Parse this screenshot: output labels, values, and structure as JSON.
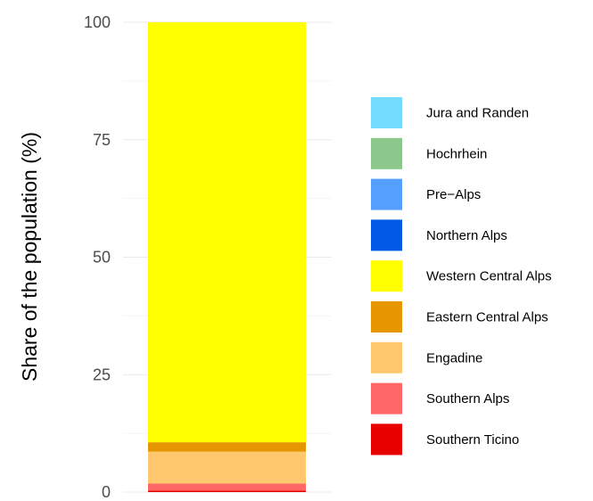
{
  "chart_data": {
    "type": "bar",
    "stacked": true,
    "title": "",
    "xlabel": "",
    "ylabel": "Share of the population (%)",
    "ylim": [
      0,
      100
    ],
    "yticks": [
      0,
      25,
      50,
      75,
      100
    ],
    "grid": true,
    "legend_position": "right",
    "categories": [
      ""
    ],
    "series": [
      {
        "name": "Southern Ticino",
        "values": [
          0.3
        ],
        "color": "#e60000"
      },
      {
        "name": "Southern Alps",
        "values": [
          1.5
        ],
        "color": "#ff6666"
      },
      {
        "name": "Engadine",
        "values": [
          6.8
        ],
        "color": "#ffc86e"
      },
      {
        "name": "Eastern Central Alps",
        "values": [
          2.0
        ],
        "color": "#e69600"
      },
      {
        "name": "Western Central Alps",
        "values": [
          89.4
        ],
        "color": "#ffff00"
      },
      {
        "name": "Northern Alps",
        "values": [
          0
        ],
        "color": "#005ae6"
      },
      {
        "name": "Pre−Alps",
        "values": [
          0
        ],
        "color": "#55a0ff"
      },
      {
        "name": "Hochrhein",
        "values": [
          0
        ],
        "color": "#8cc88c"
      },
      {
        "name": "Jura and Randen",
        "values": [
          0
        ],
        "color": "#73dcff"
      }
    ],
    "legend_order": [
      "Jura and Randen",
      "Hochrhein",
      "Pre−Alps",
      "Northern Alps",
      "Western Central Alps",
      "Eastern Central Alps",
      "Engadine",
      "Southern Alps",
      "Southern Ticino"
    ]
  }
}
